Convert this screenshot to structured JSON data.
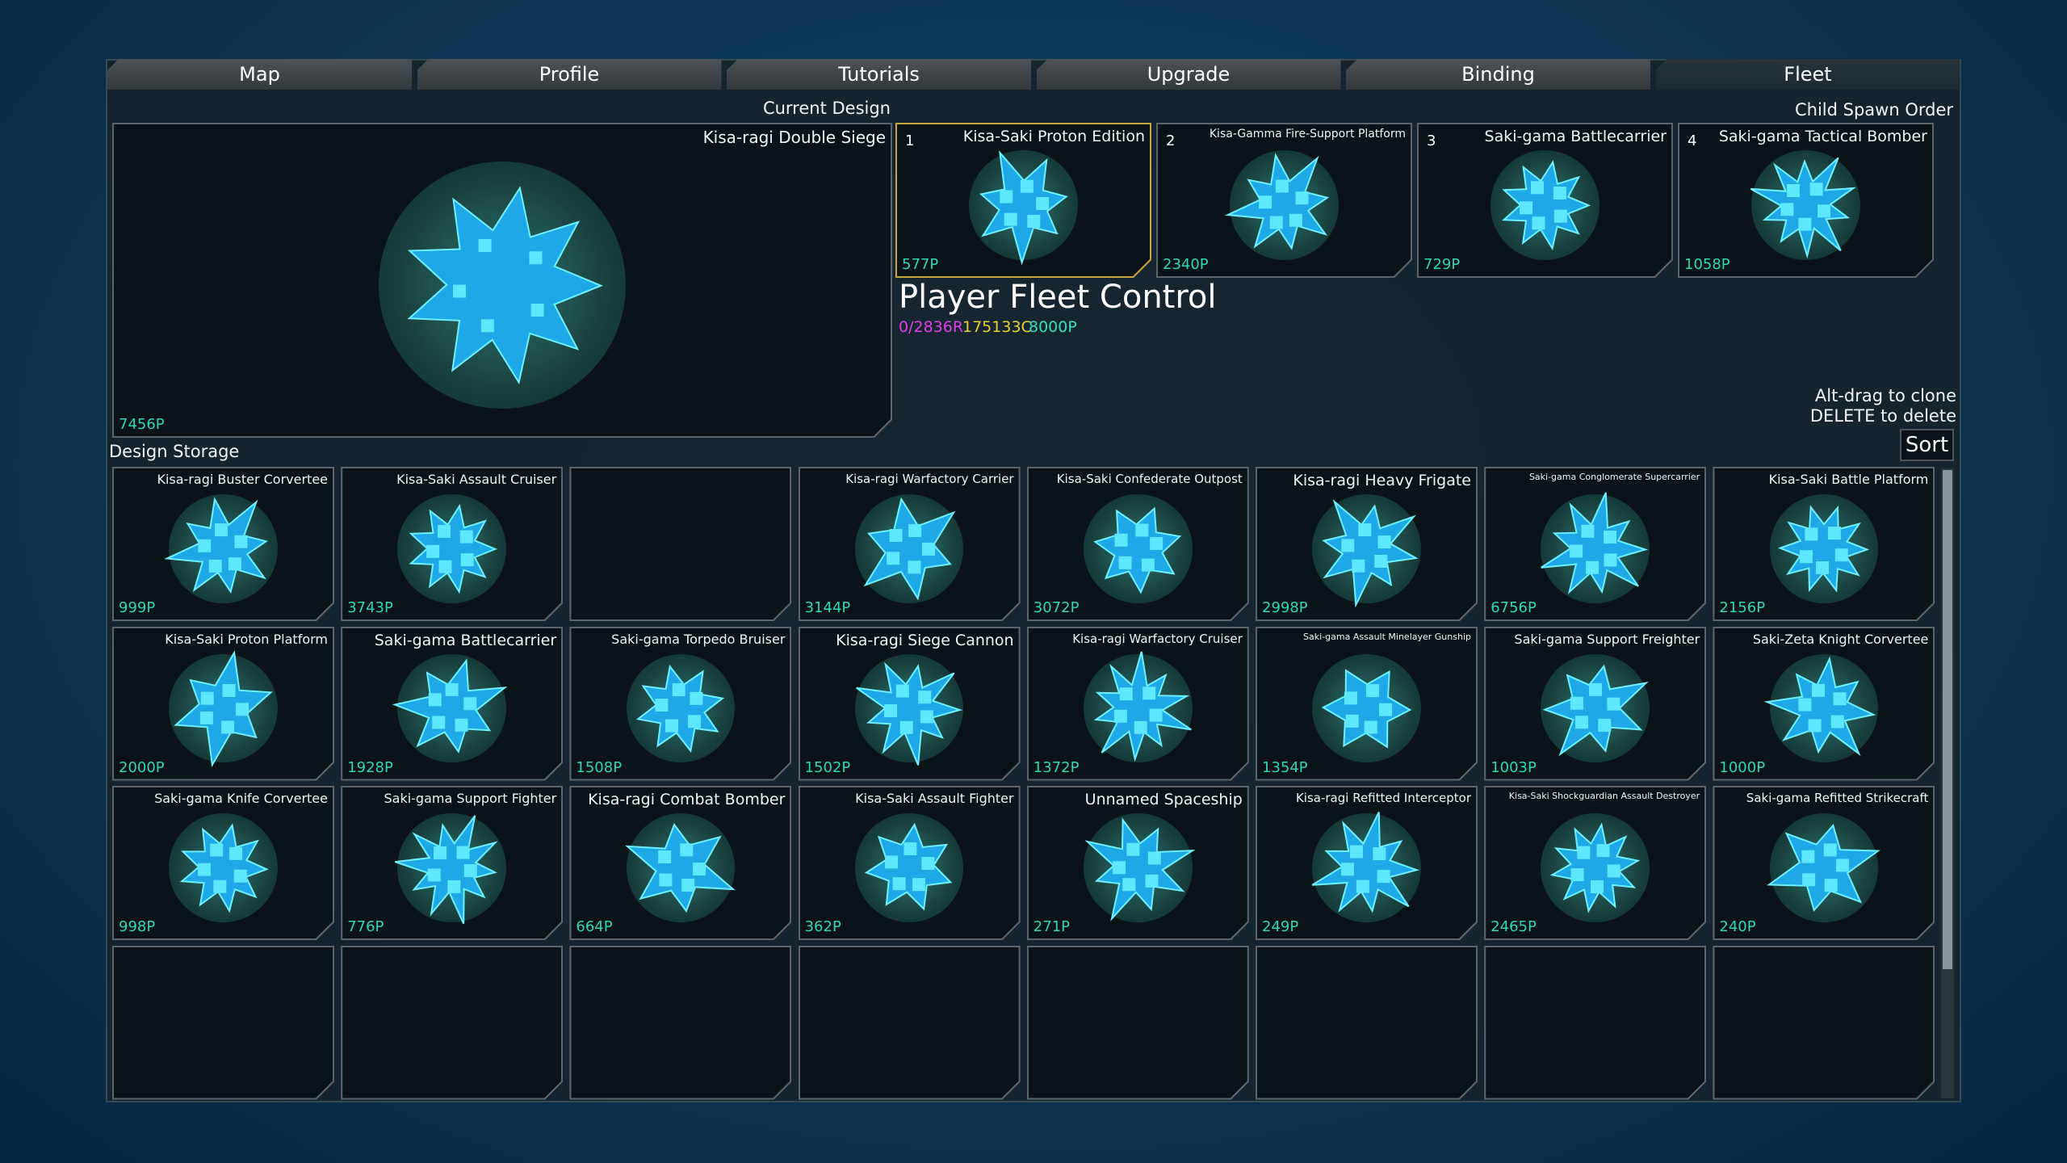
{
  "tabs": [
    "Map",
    "Profile",
    "Tutorials",
    "Upgrade",
    "Binding",
    "Fleet"
  ],
  "current_design": {
    "label": "Current Design",
    "name": "Kisa-ragi Double Siege",
    "points": "7456P"
  },
  "child_spawn_order": {
    "label": "Child Spawn Order",
    "slots": [
      {
        "index": "1",
        "name": "Kisa-Saki Proton Edition",
        "points": "577P"
      },
      {
        "index": "2",
        "name": "Kisa-Gamma Fire-Support Platform",
        "points": "2340P"
      },
      {
        "index": "3",
        "name": "Saki-gama Battlecarrier",
        "points": "729P"
      },
      {
        "index": "4",
        "name": "Saki-gama Tactical Bomber",
        "points": "1058P"
      }
    ]
  },
  "fleet_control": {
    "title": "Player Fleet Control",
    "resources": "0/2836R",
    "credits": "175133C",
    "points": "8000P"
  },
  "hints": [
    "Alt-drag to clone",
    "DELETE to delete"
  ],
  "sort_button": "Sort",
  "design_storage": {
    "label": "Design Storage",
    "rows": [
      [
        {
          "name": "Kisa-ragi Buster Corvertee",
          "points": "999P"
        },
        {
          "name": "Kisa-Saki Assault Cruiser",
          "points": "3743P"
        },
        null,
        {
          "name": "Kisa-ragi Warfactory Carrier",
          "points": "3144P"
        },
        {
          "name": "Kisa-Saki Confederate Outpost",
          "points": "3072P"
        },
        {
          "name": "Kisa-ragi Heavy Frigate",
          "points": "2998P"
        },
        {
          "name": "Saki-gama Conglomerate Supercarrier",
          "points": "6756P"
        },
        {
          "name": "Kisa-Saki Battle Platform",
          "points": "2156P"
        }
      ],
      [
        {
          "name": "Kisa-Saki Proton Platform",
          "points": "2000P"
        },
        {
          "name": "Saki-gama Battlecarrier",
          "points": "1928P"
        },
        {
          "name": "Saki-gama Torpedo Bruiser",
          "points": "1508P"
        },
        {
          "name": "Kisa-ragi Siege Cannon",
          "points": "1502P"
        },
        {
          "name": "Kisa-ragi Warfactory Cruiser",
          "points": "1372P"
        },
        {
          "name": "Saki-gama Assault Minelayer Gunship",
          "points": "1354P"
        },
        {
          "name": "Saki-gama Support Freighter",
          "points": "1003P"
        },
        {
          "name": "Saki-Zeta Knight Corvertee",
          "points": "1000P"
        }
      ],
      [
        {
          "name": "Saki-gama Knife Corvertee",
          "points": "998P"
        },
        {
          "name": "Saki-gama Support Fighter",
          "points": "776P"
        },
        {
          "name": "Kisa-ragi Combat Bomber",
          "points": "664P"
        },
        {
          "name": "Kisa-Saki Assault Fighter",
          "points": "362P"
        },
        {
          "name": "Unnamed Spaceship",
          "points": "271P"
        },
        {
          "name": "Kisa-ragi Refitted Interceptor",
          "points": "249P"
        },
        {
          "name": "Kisa-Saki Shockguardian Assault Destroyer",
          "points": "2465P"
        },
        {
          "name": "Saki-gama Refitted Strikecraft",
          "points": "240P"
        }
      ],
      [
        null,
        null,
        null,
        null,
        null,
        null,
        null,
        null
      ]
    ]
  }
}
